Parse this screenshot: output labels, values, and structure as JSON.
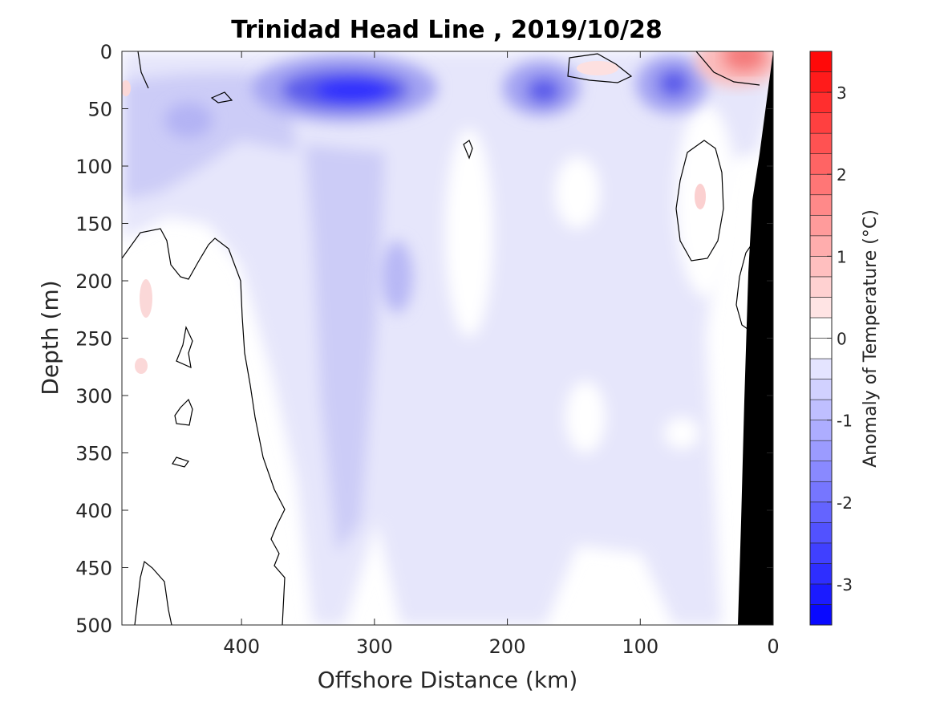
{
  "chart_data": {
    "type": "heatmap",
    "subtype": "filled-contour section",
    "title": "Trinidad Head Line , 2019/10/28",
    "xlabel": "Offshore Distance (km)",
    "ylabel": "Depth (m)",
    "xlim": [
      490,
      0
    ],
    "ylim": [
      500,
      0
    ],
    "x_reversed": true,
    "y_reversed": true,
    "xticks": [
      400,
      300,
      200,
      100,
      0
    ],
    "xtick_labels": [
      "400",
      "300",
      "200",
      "100",
      "0"
    ],
    "yticks": [
      0,
      50,
      100,
      150,
      200,
      250,
      300,
      350,
      400,
      450,
      500
    ],
    "ytick_labels": [
      "0",
      "50",
      "100",
      "150",
      "200",
      "250",
      "300",
      "350",
      "400",
      "450",
      "500"
    ],
    "colorbar": {
      "label": "Anomaly of Temperature (°C)",
      "range": [
        -3.5,
        3.5
      ],
      "level_step": 0.25,
      "ticks": [
        -3,
        -2,
        -1,
        0,
        1,
        2,
        3
      ],
      "tick_labels": [
        "-3",
        "-2",
        "-1",
        "0",
        "1",
        "2",
        "3"
      ],
      "colormap": "blue-white-red",
      "cold_color": "#0000ff",
      "neutral_color": "#ffffff",
      "warm_color": "#ff0000"
    },
    "zero_contour_color": "#000000",
    "bathymetry_color": "#000000",
    "anomaly_regions": [
      {
        "name": "surface cold core",
        "x_range": [
          360,
          240
        ],
        "depth_range": [
          10,
          90
        ],
        "anomaly": -2.4
      },
      {
        "name": "cold core near 175 km",
        "x_range": [
          200,
          150
        ],
        "depth_range": [
          15,
          75
        ],
        "anomaly": -1.8
      },
      {
        "name": "cold core near 70 km",
        "x_range": [
          100,
          40
        ],
        "depth_range": [
          10,
          70
        ],
        "anomaly": -1.8
      },
      {
        "name": "offshore upper layer",
        "x_range": [
          490,
          360
        ],
        "depth_range": [
          0,
          150
        ],
        "anomaly": -1.0
      },
      {
        "name": "mid-section column",
        "x_range": [
          380,
          100
        ],
        "depth_range": [
          0,
          500
        ],
        "anomaly": -0.6
      },
      {
        "name": "warm surface patch nearshore",
        "x_range": [
          60,
          15
        ],
        "depth_range": [
          0,
          30
        ],
        "anomaly": 1.5
      },
      {
        "name": "warm patch near 130 km",
        "x_range": [
          155,
          110
        ],
        "depth_range": [
          5,
          30
        ],
        "anomaly": 0.3
      },
      {
        "name": "warm speck near 475 km",
        "x_range": [
          485,
          465
        ],
        "depth_range": [
          190,
          230
        ],
        "anomaly": 0.4
      },
      {
        "name": "warm speck near 480 km",
        "x_range": [
          490,
          470
        ],
        "depth_range": [
          265,
          285
        ],
        "anomaly": 0.3
      }
    ]
  }
}
